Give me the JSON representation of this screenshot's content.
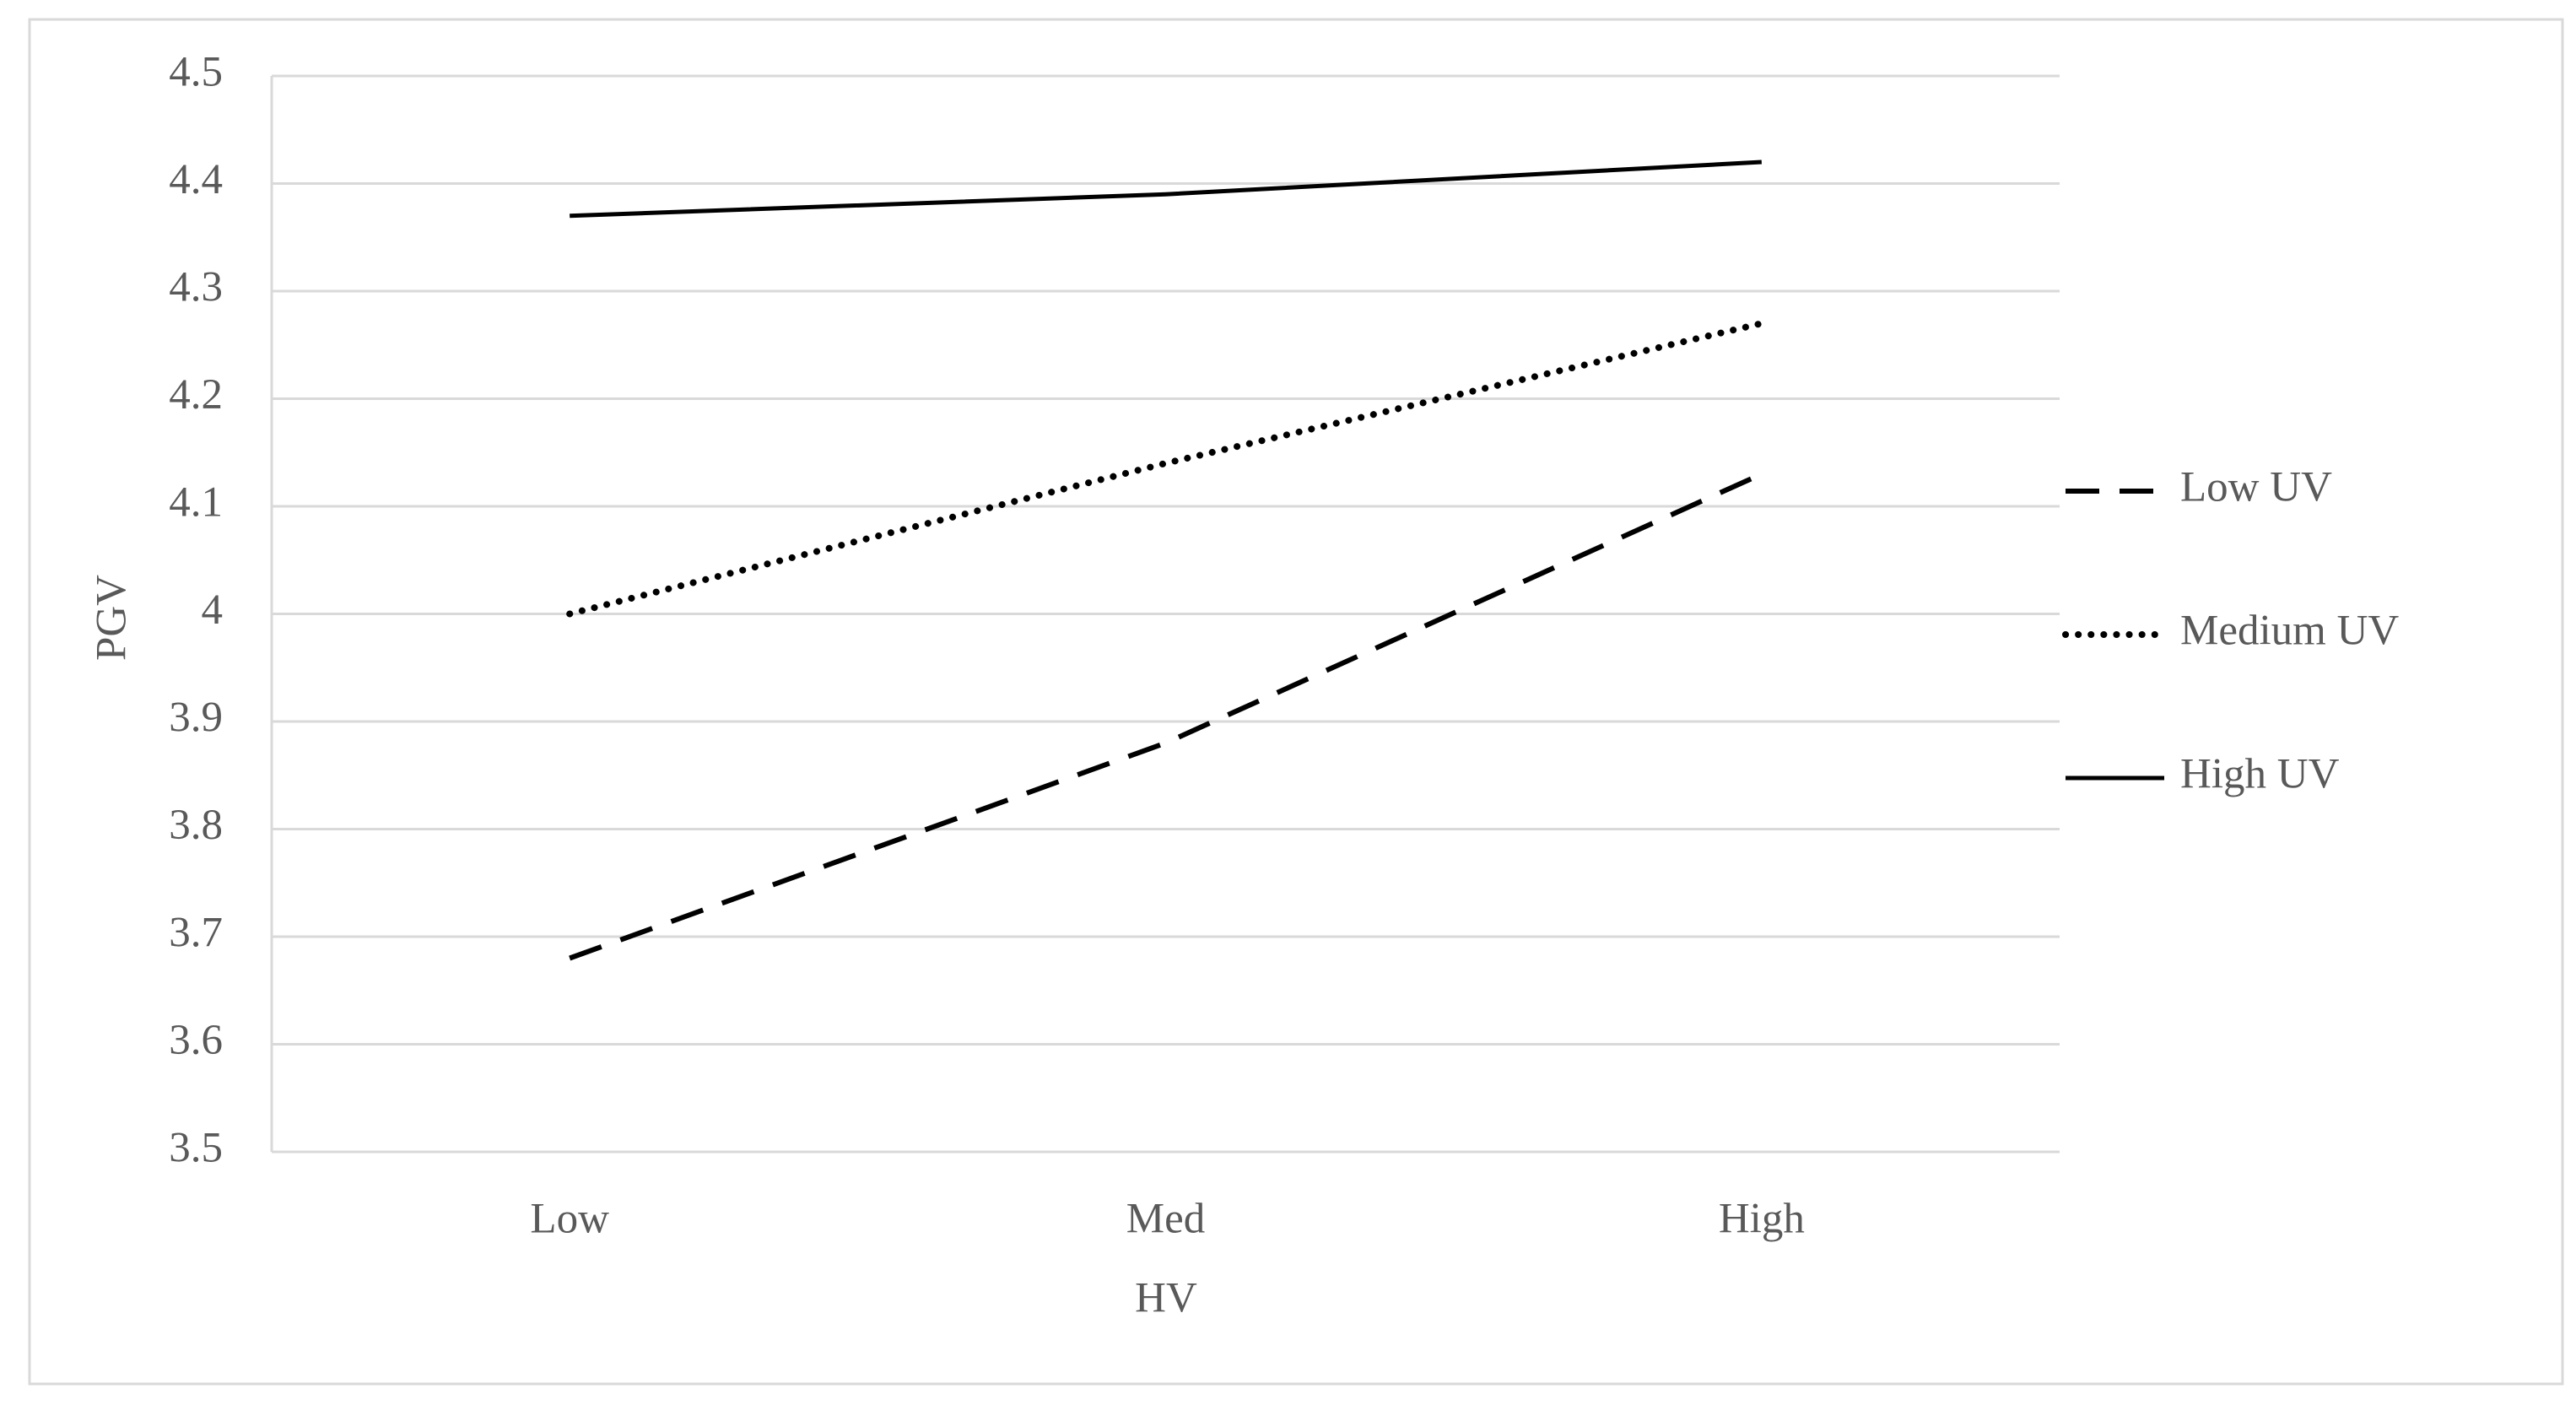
{
  "chart_data": {
    "type": "line",
    "x_label": "HV",
    "y_label": "PGV",
    "categories": [
      "Low",
      "Med",
      "High"
    ],
    "series": [
      {
        "name": "Low UV",
        "color": "#000000",
        "dash": "dashed",
        "values": [
          3.68,
          3.88,
          4.13
        ]
      },
      {
        "name": "Medium UV",
        "color": "#000000",
        "dash": "dotted",
        "values": [
          4.0,
          4.14,
          4.27
        ]
      },
      {
        "name": "High UV",
        "color": "#000000",
        "dash": "solid",
        "values": [
          4.37,
          4.39,
          4.42
        ]
      }
    ],
    "ylim": [
      3.5,
      4.5
    ],
    "yticks": [
      3.5,
      3.6,
      3.7,
      3.8,
      3.9,
      4,
      4.1,
      4.2,
      4.3,
      4.4,
      4.5
    ],
    "grid": true,
    "legend": "right"
  }
}
